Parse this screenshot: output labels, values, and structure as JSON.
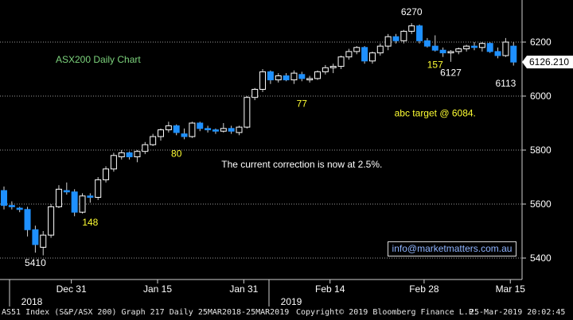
{
  "chart_data": {
    "type": "candlestick",
    "title": "ASX200 Daily Chart",
    "ylim": [
      5330,
      6290
    ],
    "y_ticks": [
      5400,
      5600,
      5800,
      6000,
      6200
    ],
    "x_ticks": [
      "Dec 31",
      "Jan 15",
      "Jan 31",
      "Feb 14",
      "Feb 28",
      "Mar 15"
    ],
    "year_labels": [
      "2018",
      "2019"
    ],
    "last_price": "6126.210",
    "candles": [
      {
        "o": 5650,
        "h": 5665,
        "l": 5580,
        "c": 5595
      },
      {
        "o": 5595,
        "h": 5610,
        "l": 5580,
        "c": 5590
      },
      {
        "o": 5585,
        "h": 5590,
        "l": 5570,
        "c": 5580
      },
      {
        "o": 5580,
        "h": 5590,
        "l": 5480,
        "c": 5505
      },
      {
        "o": 5505,
        "h": 5520,
        "l": 5420,
        "c": 5450
      },
      {
        "o": 5440,
        "h": 5500,
        "l": 5410,
        "c": 5485
      },
      {
        "o": 5485,
        "h": 5600,
        "l": 5475,
        "c": 5590
      },
      {
        "o": 5590,
        "h": 5670,
        "l": 5585,
        "c": 5655
      },
      {
        "o": 5650,
        "h": 5680,
        "l": 5635,
        "c": 5645
      },
      {
        "o": 5645,
        "h": 5655,
        "l": 5555,
        "c": 5570
      },
      {
        "o": 5570,
        "h": 5640,
        "l": 5565,
        "c": 5630
      },
      {
        "o": 5630,
        "h": 5640,
        "l": 5605,
        "c": 5625
      },
      {
        "o": 5625,
        "h": 5700,
        "l": 5615,
        "c": 5690
      },
      {
        "o": 5690,
        "h": 5740,
        "l": 5680,
        "c": 5730
      },
      {
        "o": 5730,
        "h": 5790,
        "l": 5720,
        "c": 5780
      },
      {
        "o": 5775,
        "h": 5800,
        "l": 5765,
        "c": 5790
      },
      {
        "o": 5790,
        "h": 5795,
        "l": 5765,
        "c": 5775
      },
      {
        "o": 5775,
        "h": 5800,
        "l": 5755,
        "c": 5795
      },
      {
        "o": 5795,
        "h": 5830,
        "l": 5785,
        "c": 5820
      },
      {
        "o": 5820,
        "h": 5860,
        "l": 5815,
        "c": 5850
      },
      {
        "o": 5850,
        "h": 5880,
        "l": 5835,
        "c": 5875
      },
      {
        "o": 5875,
        "h": 5905,
        "l": 5865,
        "c": 5890
      },
      {
        "o": 5890,
        "h": 5895,
        "l": 5855,
        "c": 5865
      },
      {
        "o": 5860,
        "h": 5880,
        "l": 5840,
        "c": 5850
      },
      {
        "o": 5850,
        "h": 5905,
        "l": 5845,
        "c": 5900
      },
      {
        "o": 5900,
        "h": 5905,
        "l": 5870,
        "c": 5880
      },
      {
        "o": 5880,
        "h": 5890,
        "l": 5865,
        "c": 5875
      },
      {
        "o": 5875,
        "h": 5880,
        "l": 5860,
        "c": 5870
      },
      {
        "o": 5870,
        "h": 5900,
        "l": 5865,
        "c": 5880
      },
      {
        "o": 5880,
        "h": 5890,
        "l": 5860,
        "c": 5870
      },
      {
        "o": 5865,
        "h": 5890,
        "l": 5855,
        "c": 5885
      },
      {
        "o": 5885,
        "h": 6000,
        "l": 5880,
        "c": 5995
      },
      {
        "o": 5995,
        "h": 6030,
        "l": 5985,
        "c": 6025
      },
      {
        "o": 6025,
        "h": 6100,
        "l": 6015,
        "c": 6090
      },
      {
        "o": 6090,
        "h": 6095,
        "l": 6045,
        "c": 6060
      },
      {
        "o": 6060,
        "h": 6085,
        "l": 6050,
        "c": 6075
      },
      {
        "o": 6075,
        "h": 6085,
        "l": 6055,
        "c": 6060
      },
      {
        "o": 6060,
        "h": 6095,
        "l": 6045,
        "c": 6085
      },
      {
        "o": 6080,
        "h": 6090,
        "l": 6055,
        "c": 6065
      },
      {
        "o": 6060,
        "h": 6075,
        "l": 6050,
        "c": 6065
      },
      {
        "o": 6065,
        "h": 6095,
        "l": 6060,
        "c": 6090
      },
      {
        "o": 6090,
        "h": 6115,
        "l": 6080,
        "c": 6105
      },
      {
        "o": 6105,
        "h": 6120,
        "l": 6085,
        "c": 6110
      },
      {
        "o": 6110,
        "h": 6150,
        "l": 6100,
        "c": 6145
      },
      {
        "o": 6145,
        "h": 6175,
        "l": 6135,
        "c": 6165
      },
      {
        "o": 6165,
        "h": 6185,
        "l": 6155,
        "c": 6180
      },
      {
        "o": 6180,
        "h": 6185,
        "l": 6120,
        "c": 6130
      },
      {
        "o": 6130,
        "h": 6165,
        "l": 6120,
        "c": 6160
      },
      {
        "o": 6160,
        "h": 6195,
        "l": 6150,
        "c": 6185
      },
      {
        "o": 6185,
        "h": 6230,
        "l": 6170,
        "c": 6220
      },
      {
        "o": 6220,
        "h": 6230,
        "l": 6195,
        "c": 6205
      },
      {
        "o": 6205,
        "h": 6245,
        "l": 6195,
        "c": 6240
      },
      {
        "o": 6240,
        "h": 6270,
        "l": 6230,
        "c": 6260
      },
      {
        "o": 6260,
        "h": 6265,
        "l": 6195,
        "c": 6205
      },
      {
        "o": 6205,
        "h": 6215,
        "l": 6180,
        "c": 6185
      },
      {
        "o": 6185,
        "h": 6225,
        "l": 6165,
        "c": 6170
      },
      {
        "o": 6170,
        "h": 6180,
        "l": 6145,
        "c": 6160
      },
      {
        "o": 6160,
        "h": 6170,
        "l": 6127,
        "c": 6165
      },
      {
        "o": 6165,
        "h": 6180,
        "l": 6155,
        "c": 6175
      },
      {
        "o": 6175,
        "h": 6190,
        "l": 6165,
        "c": 6185
      },
      {
        "o": 6185,
        "h": 6200,
        "l": 6170,
        "c": 6180
      },
      {
        "o": 6180,
        "h": 6200,
        "l": 6165,
        "c": 6195
      },
      {
        "o": 6195,
        "h": 6200,
        "l": 6160,
        "c": 6165
      },
      {
        "o": 6165,
        "h": 6180,
        "l": 6140,
        "c": 6150
      },
      {
        "o": 6150,
        "h": 6215,
        "l": 6145,
        "c": 6200
      },
      {
        "o": 6185,
        "h": 6200,
        "l": 6113,
        "c": 6126
      }
    ],
    "annotations": [
      {
        "text": "5410",
        "color": "#ffffff",
        "x_index": 4,
        "y": 5370
      },
      {
        "text": "148",
        "color": "#ffff33",
        "x_index": 11,
        "y": 5520
      },
      {
        "text": "80",
        "color": "#ffff33",
        "x_index": 22,
        "y": 5775
      },
      {
        "text": "77",
        "color": "#ffff33",
        "x_index": 38,
        "y": 5960
      },
      {
        "text": "6270",
        "color": "#ffffff",
        "x_index": 52,
        "y": 6300
      },
      {
        "text": "157",
        "color": "#ffff33",
        "x_index": 55,
        "y": 6105
      },
      {
        "text": "6127",
        "color": "#ffffff",
        "x_index": 57,
        "y": 6075
      },
      {
        "text": "6113",
        "color": "#ffffff",
        "x_index": 64,
        "y": 6035
      },
      {
        "text": "abc target @  6084.",
        "color": "#ffff33",
        "x_index": 55,
        "y": 5925
      },
      {
        "text": "The current correction is now at 2.5%.",
        "color": "#ffffff",
        "x_index": 38,
        "y": 5735
      }
    ]
  },
  "website": "info@marketmatters.com.au",
  "footer": {
    "left": "AS51 Index (S&P/ASX 200) Graph 217  Daily 25MAR2018-25MAR2019",
    "center": "Copyright© 2019 Bloomberg Finance L.P.",
    "right": "25-Mar-2019 20:02:45"
  },
  "colors": {
    "up": "#ffffff",
    "down": "#1e90ff",
    "title": "#7cd37c",
    "annotation": "#ffff33",
    "grid": "#9a9a9a",
    "price_tag": "#ffffff"
  }
}
